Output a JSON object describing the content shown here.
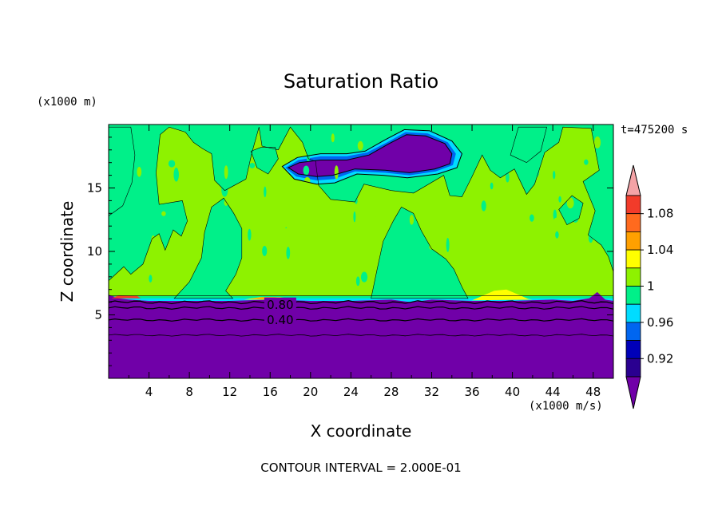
{
  "chart_data": {
    "type": "heatmap",
    "title": "Saturation Ratio",
    "xlabel": "X coordinate",
    "ylabel": "Z coordinate",
    "x_unit": "(x1000 m/s)",
    "y_unit": "(x1000 m)",
    "time_label": "t=475200 s",
    "contour_note": "CONTOUR INTERVAL = 2.000E-01",
    "xlim": [
      0,
      50
    ],
    "ylim": [
      0,
      20
    ],
    "x_ticks": [
      "4",
      "8",
      "12",
      "16",
      "20",
      "24",
      "28",
      "32",
      "36",
      "40",
      "44",
      "48"
    ],
    "y_ticks": [
      "5",
      "10",
      "15"
    ],
    "contour_labels": [
      {
        "text": "0.80",
        "x": 17,
        "y": 5.8
      },
      {
        "text": "0.40",
        "x": 17,
        "y": 4.6
      }
    ],
    "colorbar": {
      "labels": [
        "1.08",
        "1.04",
        "1",
        "0.96",
        "0.92"
      ],
      "colors": [
        "#f4a3a6",
        "#f23b2a",
        "#ff6a1e",
        "#ffa000",
        "#ffff00",
        "#8ef200",
        "#00f089",
        "#00dcff",
        "#0066f0",
        "#0000b8",
        "#2a0090",
        "#7000a8"
      ]
    },
    "regions": {
      "low_layer_top_z": 6.1,
      "background_value": "0.96-1",
      "upper_dry_patch_value": "<0.92"
    }
  },
  "colors": {
    "purple": "#7000a8",
    "green": "#00f089",
    "lime": "#8ef200",
    "yellow": "#ffff00",
    "cyan": "#00dcff",
    "blue": "#0066f0",
    "orange": "#ffa000",
    "red": "#f23b2a"
  }
}
